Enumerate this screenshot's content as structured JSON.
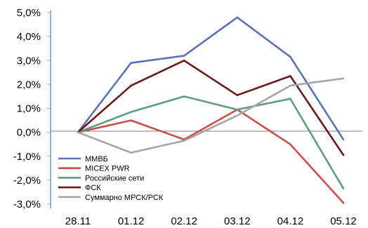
{
  "chart_data": {
    "type": "line",
    "categories": [
      "28.11",
      "01.12",
      "02.12",
      "03.12",
      "04.12",
      "05.12"
    ],
    "y_tick_labels": [
      "5,0%",
      "4,0%",
      "3,0%",
      "2,0%",
      "1,0%",
      "0,0%",
      "-1,0%",
      "-2,0%",
      "-3,0%"
    ],
    "y_ticks": [
      5,
      4,
      3,
      2,
      1,
      0,
      -1,
      -2,
      -3
    ],
    "ylim": [
      -3,
      5
    ],
    "legend_position": "lower-left",
    "grid": false,
    "series": [
      {
        "name": "ММВБ",
        "color": "#5a72b5",
        "values": [
          0.0,
          2.9,
          3.2,
          4.8,
          3.15,
          -0.3
        ]
      },
      {
        "name": "MICEX PWR",
        "color": "#c9504a",
        "values": [
          0.0,
          0.5,
          -0.3,
          0.95,
          -0.5,
          -2.95
        ]
      },
      {
        "name": "Российские сети",
        "color": "#5f9e7a",
        "values": [
          0.0,
          0.85,
          1.5,
          0.95,
          1.4,
          -2.35
        ]
      },
      {
        "name": "ФСК",
        "color": "#6b1a1a",
        "values": [
          0.0,
          1.95,
          3.0,
          1.55,
          2.35,
          -0.95
        ]
      },
      {
        "name": "Суммарно МРСК/РСК",
        "color": "#a6a6a6",
        "values": [
          0.0,
          -0.85,
          -0.35,
          0.7,
          1.95,
          2.25
        ]
      }
    ]
  }
}
